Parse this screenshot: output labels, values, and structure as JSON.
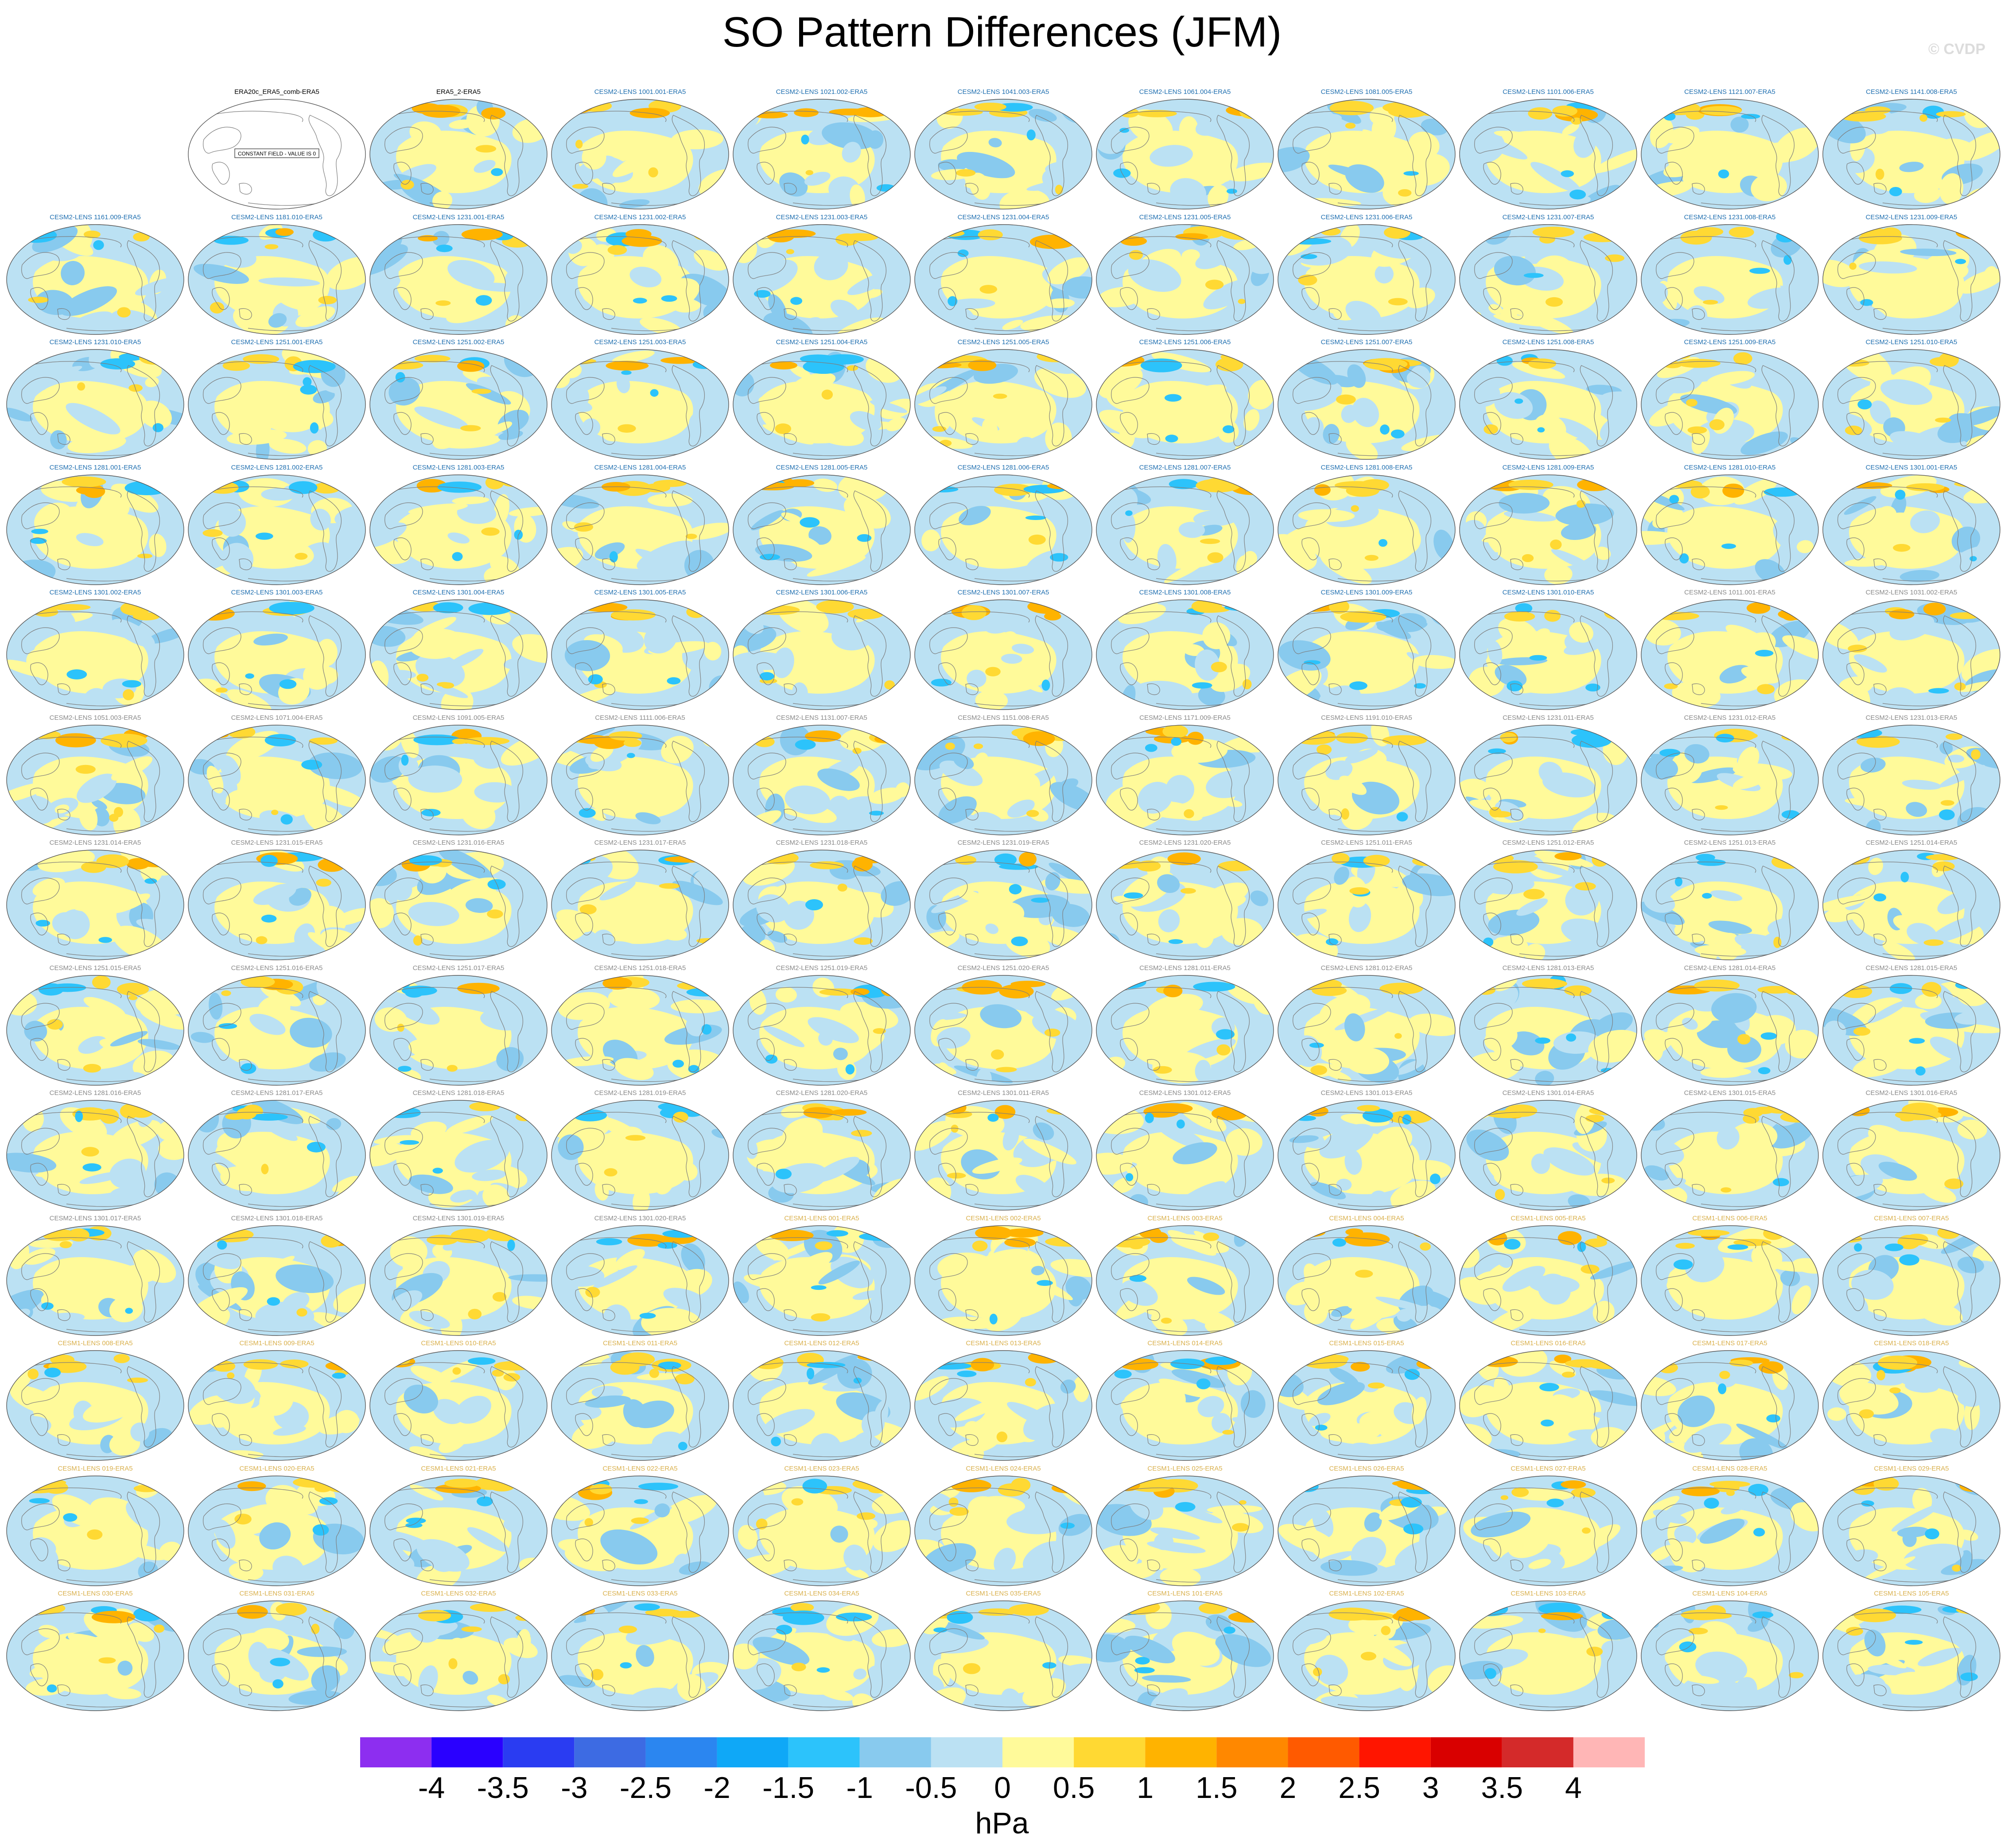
{
  "title": "SO Pattern Differences (JFM)",
  "credit": "© CVDP",
  "units": "hPa",
  "colorbar": {
    "ticks": [
      "-4",
      "-3.5",
      "-3",
      "-2.5",
      "-2",
      "-1.5",
      "-1",
      "-0.5",
      "0",
      "0.5",
      "1",
      "1.5",
      "2",
      "2.5",
      "3",
      "3.5",
      "4"
    ],
    "colors": [
      "#8d2ef0",
      "#2a00ff",
      "#2a3cf2",
      "#3d6be3",
      "#2b86f0",
      "#0fa8f7",
      "#2cc3fb",
      "#88caee",
      "#bbe1f3",
      "#fffa9a",
      "#ffd933",
      "#ffb300",
      "#ff8800",
      "#ff5a00",
      "#ff1500",
      "#d90000",
      "#d42a2a",
      "#ffb6b6"
    ]
  },
  "constant_field_text": "CONSTANT FIELD - VALUE IS 0",
  "panels": [
    {
      "label": "",
      "style": "empty"
    },
    {
      "label": "ERA20c_ERA5_comb-ERA5",
      "style": "constant"
    },
    {
      "label": "ERA5_2-ERA5",
      "style": "ref"
    },
    {
      "label": "CESM2-LENS 1001.001-ERA5",
      "style": "cesm2"
    },
    {
      "label": "CESM2-LENS 1021.002-ERA5",
      "style": "cesm2"
    },
    {
      "label": "CESM2-LENS 1041.003-ERA5",
      "style": "cesm2"
    },
    {
      "label": "CESM2-LENS 1061.004-ERA5",
      "style": "cesm2"
    },
    {
      "label": "CESM2-LENS 1081.005-ERA5",
      "style": "cesm2"
    },
    {
      "label": "CESM2-LENS 1101.006-ERA5",
      "style": "cesm2"
    },
    {
      "label": "CESM2-LENS 1121.007-ERA5",
      "style": "cesm2"
    },
    {
      "label": "CESM2-LENS 1141.008-ERA5",
      "style": "cesm2"
    },
    {
      "label": "CESM2-LENS 1161.009-ERA5",
      "style": "cesm2"
    },
    {
      "label": "CESM2-LENS 1181.010-ERA5",
      "style": "cesm2"
    },
    {
      "label": "CESM2-LENS 1231.001-ERA5",
      "style": "cesm2"
    },
    {
      "label": "CESM2-LENS 1231.002-ERA5",
      "style": "cesm2"
    },
    {
      "label": "CESM2-LENS 1231.003-ERA5",
      "style": "cesm2"
    },
    {
      "label": "CESM2-LENS 1231.004-ERA5",
      "style": "cesm2"
    },
    {
      "label": "CESM2-LENS 1231.005-ERA5",
      "style": "cesm2"
    },
    {
      "label": "CESM2-LENS 1231.006-ERA5",
      "style": "cesm2"
    },
    {
      "label": "CESM2-LENS 1231.007-ERA5",
      "style": "cesm2"
    },
    {
      "label": "CESM2-LENS 1231.008-ERA5",
      "style": "cesm2"
    },
    {
      "label": "CESM2-LENS 1231.009-ERA5",
      "style": "cesm2"
    },
    {
      "label": "CESM2-LENS 1231.010-ERA5",
      "style": "cesm2"
    },
    {
      "label": "CESM2-LENS 1251.001-ERA5",
      "style": "cesm2"
    },
    {
      "label": "CESM2-LENS 1251.002-ERA5",
      "style": "cesm2"
    },
    {
      "label": "CESM2-LENS 1251.003-ERA5",
      "style": "cesm2"
    },
    {
      "label": "CESM2-LENS 1251.004-ERA5",
      "style": "cesm2"
    },
    {
      "label": "CESM2-LENS 1251.005-ERA5",
      "style": "cesm2"
    },
    {
      "label": "CESM2-LENS 1251.006-ERA5",
      "style": "cesm2"
    },
    {
      "label": "CESM2-LENS 1251.007-ERA5",
      "style": "cesm2"
    },
    {
      "label": "CESM2-LENS 1251.008-ERA5",
      "style": "cesm2"
    },
    {
      "label": "CESM2-LENS 1251.009-ERA5",
      "style": "cesm2"
    },
    {
      "label": "CESM2-LENS 1251.010-ERA5",
      "style": "cesm2"
    },
    {
      "label": "CESM2-LENS 1281.001-ERA5",
      "style": "cesm2"
    },
    {
      "label": "CESM2-LENS 1281.002-ERA5",
      "style": "cesm2"
    },
    {
      "label": "CESM2-LENS 1281.003-ERA5",
      "style": "cesm2"
    },
    {
      "label": "CESM2-LENS 1281.004-ERA5",
      "style": "cesm2"
    },
    {
      "label": "CESM2-LENS 1281.005-ERA5",
      "style": "cesm2"
    },
    {
      "label": "CESM2-LENS 1281.006-ERA5",
      "style": "cesm2"
    },
    {
      "label": "CESM2-LENS 1281.007-ERA5",
      "style": "cesm2"
    },
    {
      "label": "CESM2-LENS 1281.008-ERA5",
      "style": "cesm2"
    },
    {
      "label": "CESM2-LENS 1281.009-ERA5",
      "style": "cesm2"
    },
    {
      "label": "CESM2-LENS 1281.010-ERA5",
      "style": "cesm2"
    },
    {
      "label": "CESM2-LENS 1301.001-ERA5",
      "style": "cesm2"
    },
    {
      "label": "CESM2-LENS 1301.002-ERA5",
      "style": "cesm2"
    },
    {
      "label": "CESM2-LENS 1301.003-ERA5",
      "style": "cesm2"
    },
    {
      "label": "CESM2-LENS 1301.004-ERA5",
      "style": "cesm2"
    },
    {
      "label": "CESM2-LENS 1301.005-ERA5",
      "style": "cesm2"
    },
    {
      "label": "CESM2-LENS 1301.006-ERA5",
      "style": "cesm2"
    },
    {
      "label": "CESM2-LENS 1301.007-ERA5",
      "style": "cesm2"
    },
    {
      "label": "CESM2-LENS 1301.008-ERA5",
      "style": "cesm2"
    },
    {
      "label": "CESM2-LENS 1301.009-ERA5",
      "style": "cesm2"
    },
    {
      "label": "CESM2-LENS 1301.010-ERA5",
      "style": "cesm2"
    },
    {
      "label": "CESM2-LENS 1011.001-ERA5",
      "style": "cesm2b"
    },
    {
      "label": "CESM2-LENS 1031.002-ERA5",
      "style": "cesm2b"
    },
    {
      "label": "CESM2-LENS 1051.003-ERA5",
      "style": "cesm2b"
    },
    {
      "label": "CESM2-LENS 1071.004-ERA5",
      "style": "cesm2b"
    },
    {
      "label": "CESM2-LENS 1091.005-ERA5",
      "style": "cesm2b"
    },
    {
      "label": "CESM2-LENS 1111.006-ERA5",
      "style": "cesm2b"
    },
    {
      "label": "CESM2-LENS 1131.007-ERA5",
      "style": "cesm2b"
    },
    {
      "label": "CESM2-LENS 1151.008-ERA5",
      "style": "cesm2b"
    },
    {
      "label": "CESM2-LENS 1171.009-ERA5",
      "style": "cesm2b"
    },
    {
      "label": "CESM2-LENS 1191.010-ERA5",
      "style": "cesm2b"
    },
    {
      "label": "CESM2-LENS 1231.011-ERA5",
      "style": "cesm2b"
    },
    {
      "label": "CESM2-LENS 1231.012-ERA5",
      "style": "cesm2b"
    },
    {
      "label": "CESM2-LENS 1231.013-ERA5",
      "style": "cesm2b"
    },
    {
      "label": "CESM2-LENS 1231.014-ERA5",
      "style": "cesm2b"
    },
    {
      "label": "CESM2-LENS 1231.015-ERA5",
      "style": "cesm2b"
    },
    {
      "label": "CESM2-LENS 1231.016-ERA5",
      "style": "cesm2b"
    },
    {
      "label": "CESM2-LENS 1231.017-ERA5",
      "style": "cesm2b"
    },
    {
      "label": "CESM2-LENS 1231.018-ERA5",
      "style": "cesm2b"
    },
    {
      "label": "CESM2-LENS 1231.019-ERA5",
      "style": "cesm2b"
    },
    {
      "label": "CESM2-LENS 1231.020-ERA5",
      "style": "cesm2b"
    },
    {
      "label": "CESM2-LENS 1251.011-ERA5",
      "style": "cesm2b"
    },
    {
      "label": "CESM2-LENS 1251.012-ERA5",
      "style": "cesm2b"
    },
    {
      "label": "CESM2-LENS 1251.013-ERA5",
      "style": "cesm2b"
    },
    {
      "label": "CESM2-LENS 1251.014-ERA5",
      "style": "cesm2b"
    },
    {
      "label": "CESM2-LENS 1251.015-ERA5",
      "style": "cesm2b"
    },
    {
      "label": "CESM2-LENS 1251.016-ERA5",
      "style": "cesm2b"
    },
    {
      "label": "CESM2-LENS 1251.017-ERA5",
      "style": "cesm2b"
    },
    {
      "label": "CESM2-LENS 1251.018-ERA5",
      "style": "cesm2b"
    },
    {
      "label": "CESM2-LENS 1251.019-ERA5",
      "style": "cesm2b"
    },
    {
      "label": "CESM2-LENS 1251.020-ERA5",
      "style": "cesm2b"
    },
    {
      "label": "CESM2-LENS 1281.011-ERA5",
      "style": "cesm2b"
    },
    {
      "label": "CESM2-LENS 1281.012-ERA5",
      "style": "cesm2b"
    },
    {
      "label": "CESM2-LENS 1281.013-ERA5",
      "style": "cesm2b"
    },
    {
      "label": "CESM2-LENS 1281.014-ERA5",
      "style": "cesm2b"
    },
    {
      "label": "CESM2-LENS 1281.015-ERA5",
      "style": "cesm2b"
    },
    {
      "label": "CESM2-LENS 1281.016-ERA5",
      "style": "cesm2b"
    },
    {
      "label": "CESM2-LENS 1281.017-ERA5",
      "style": "cesm2b"
    },
    {
      "label": "CESM2-LENS 1281.018-ERA5",
      "style": "cesm2b"
    },
    {
      "label": "CESM2-LENS 1281.019-ERA5",
      "style": "cesm2b"
    },
    {
      "label": "CESM2-LENS 1281.020-ERA5",
      "style": "cesm2b"
    },
    {
      "label": "CESM2-LENS 1301.011-ERA5",
      "style": "cesm2b"
    },
    {
      "label": "CESM2-LENS 1301.012-ERA5",
      "style": "cesm2b"
    },
    {
      "label": "CESM2-LENS 1301.013-ERA5",
      "style": "cesm2b"
    },
    {
      "label": "CESM2-LENS 1301.014-ERA5",
      "style": "cesm2b"
    },
    {
      "label": "CESM2-LENS 1301.015-ERA5",
      "style": "cesm2b"
    },
    {
      "label": "CESM2-LENS 1301.016-ERA5",
      "style": "cesm2b"
    },
    {
      "label": "CESM2-LENS 1301.017-ERA5",
      "style": "cesm2b"
    },
    {
      "label": "CESM2-LENS 1301.018-ERA5",
      "style": "cesm2b"
    },
    {
      "label": "CESM2-LENS 1301.019-ERA5",
      "style": "cesm2b"
    },
    {
      "label": "CESM2-LENS 1301.020-ERA5",
      "style": "cesm2b"
    },
    {
      "label": "CESM1-LENS 001-ERA5",
      "style": "cesm1"
    },
    {
      "label": "CESM1-LENS 002-ERA5",
      "style": "cesm1"
    },
    {
      "label": "CESM1-LENS 003-ERA5",
      "style": "cesm1"
    },
    {
      "label": "CESM1-LENS 004-ERA5",
      "style": "cesm1"
    },
    {
      "label": "CESM1-LENS 005-ERA5",
      "style": "cesm1"
    },
    {
      "label": "CESM1-LENS 006-ERA5",
      "style": "cesm1"
    },
    {
      "label": "CESM1-LENS 007-ERA5",
      "style": "cesm1"
    },
    {
      "label": "CESM1-LENS 008-ERA5",
      "style": "cesm1"
    },
    {
      "label": "CESM1-LENS 009-ERA5",
      "style": "cesm1"
    },
    {
      "label": "CESM1-LENS 010-ERA5",
      "style": "cesm1"
    },
    {
      "label": "CESM1-LENS 011-ERA5",
      "style": "cesm1"
    },
    {
      "label": "CESM1-LENS 012-ERA5",
      "style": "cesm1"
    },
    {
      "label": "CESM1-LENS 013-ERA5",
      "style": "cesm1"
    },
    {
      "label": "CESM1-LENS 014-ERA5",
      "style": "cesm1"
    },
    {
      "label": "CESM1-LENS 015-ERA5",
      "style": "cesm1"
    },
    {
      "label": "CESM1-LENS 016-ERA5",
      "style": "cesm1"
    },
    {
      "label": "CESM1-LENS 017-ERA5",
      "style": "cesm1"
    },
    {
      "label": "CESM1-LENS 018-ERA5",
      "style": "cesm1"
    },
    {
      "label": "CESM1-LENS 019-ERA5",
      "style": "cesm1"
    },
    {
      "label": "CESM1-LENS 020-ERA5",
      "style": "cesm1"
    },
    {
      "label": "CESM1-LENS 021-ERA5",
      "style": "cesm1"
    },
    {
      "label": "CESM1-LENS 022-ERA5",
      "style": "cesm1"
    },
    {
      "label": "CESM1-LENS 023-ERA5",
      "style": "cesm1"
    },
    {
      "label": "CESM1-LENS 024-ERA5",
      "style": "cesm1"
    },
    {
      "label": "CESM1-LENS 025-ERA5",
      "style": "cesm1"
    },
    {
      "label": "CESM1-LENS 026-ERA5",
      "style": "cesm1"
    },
    {
      "label": "CESM1-LENS 027-ERA5",
      "style": "cesm1"
    },
    {
      "label": "CESM1-LENS 028-ERA5",
      "style": "cesm1"
    },
    {
      "label": "CESM1-LENS 029-ERA5",
      "style": "cesm1"
    },
    {
      "label": "CESM1-LENS 030-ERA5",
      "style": "cesm1"
    },
    {
      "label": "CESM1-LENS 031-ERA5",
      "style": "cesm1"
    },
    {
      "label": "CESM1-LENS 032-ERA5",
      "style": "cesm1"
    },
    {
      "label": "CESM1-LENS 033-ERA5",
      "style": "cesm1"
    },
    {
      "label": "CESM1-LENS 034-ERA5",
      "style": "cesm1"
    },
    {
      "label": "CESM1-LENS 035-ERA5",
      "style": "cesm1"
    },
    {
      "label": "CESM1-LENS 101-ERA5",
      "style": "cesm1"
    },
    {
      "label": "CESM1-LENS 102-ERA5",
      "style": "cesm1"
    },
    {
      "label": "CESM1-LENS 103-ERA5",
      "style": "cesm1"
    },
    {
      "label": "CESM1-LENS 104-ERA5",
      "style": "cesm1"
    },
    {
      "label": "CESM1-LENS 105-ERA5",
      "style": "cesm1"
    }
  ]
}
